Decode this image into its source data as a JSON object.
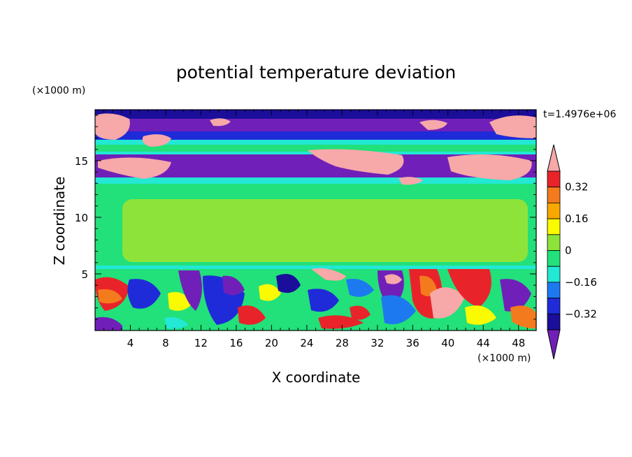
{
  "chart_data": {
    "type": "heatmap",
    "title": "potential temperature deviation",
    "xlabel": "X coordinate",
    "ylabel": "Z coordinate",
    "x_unit": "(×1000 m)",
    "z_unit": "(×1000 m)",
    "time_label": "t=1.4976e+06",
    "xlim": [
      0,
      50
    ],
    "ylim": [
      0,
      19.5
    ],
    "x_ticks": [
      4,
      8,
      12,
      16,
      20,
      24,
      28,
      32,
      36,
      40,
      44,
      48
    ],
    "y_ticks": [
      5,
      10,
      15
    ],
    "colorbar": {
      "labels": [
        "0.32",
        "0.16",
        "0",
        "−0.16",
        "−0.32"
      ],
      "levels": [
        0.4,
        0.32,
        0.24,
        0.16,
        0.08,
        0,
        -0.08,
        -0.16,
        -0.24,
        -0.32,
        -0.4
      ],
      "colors": [
        "#f7a8a8",
        "#e8242a",
        "#f47a1e",
        "#f9a800",
        "#fafa00",
        "#8de33a",
        "#22e07a",
        "#22e8d4",
        "#1c79f0",
        "#1f2bd8",
        "#1a0e9a",
        "#7020b8"
      ],
      "extend": "both"
    },
    "legend_position": "right"
  },
  "colors": {
    "pink": "#f7a8a8",
    "red": "#e8242a",
    "orange": "#f47a1e",
    "amber": "#f9a800",
    "yellow": "#fafa00",
    "yellow_green": "#8de33a",
    "green": "#22e07a",
    "cyan": "#22e8d4",
    "blue": "#1c79f0",
    "dark_blue": "#1f2bd8",
    "navy": "#1a0e9a",
    "purple": "#7020b8"
  }
}
